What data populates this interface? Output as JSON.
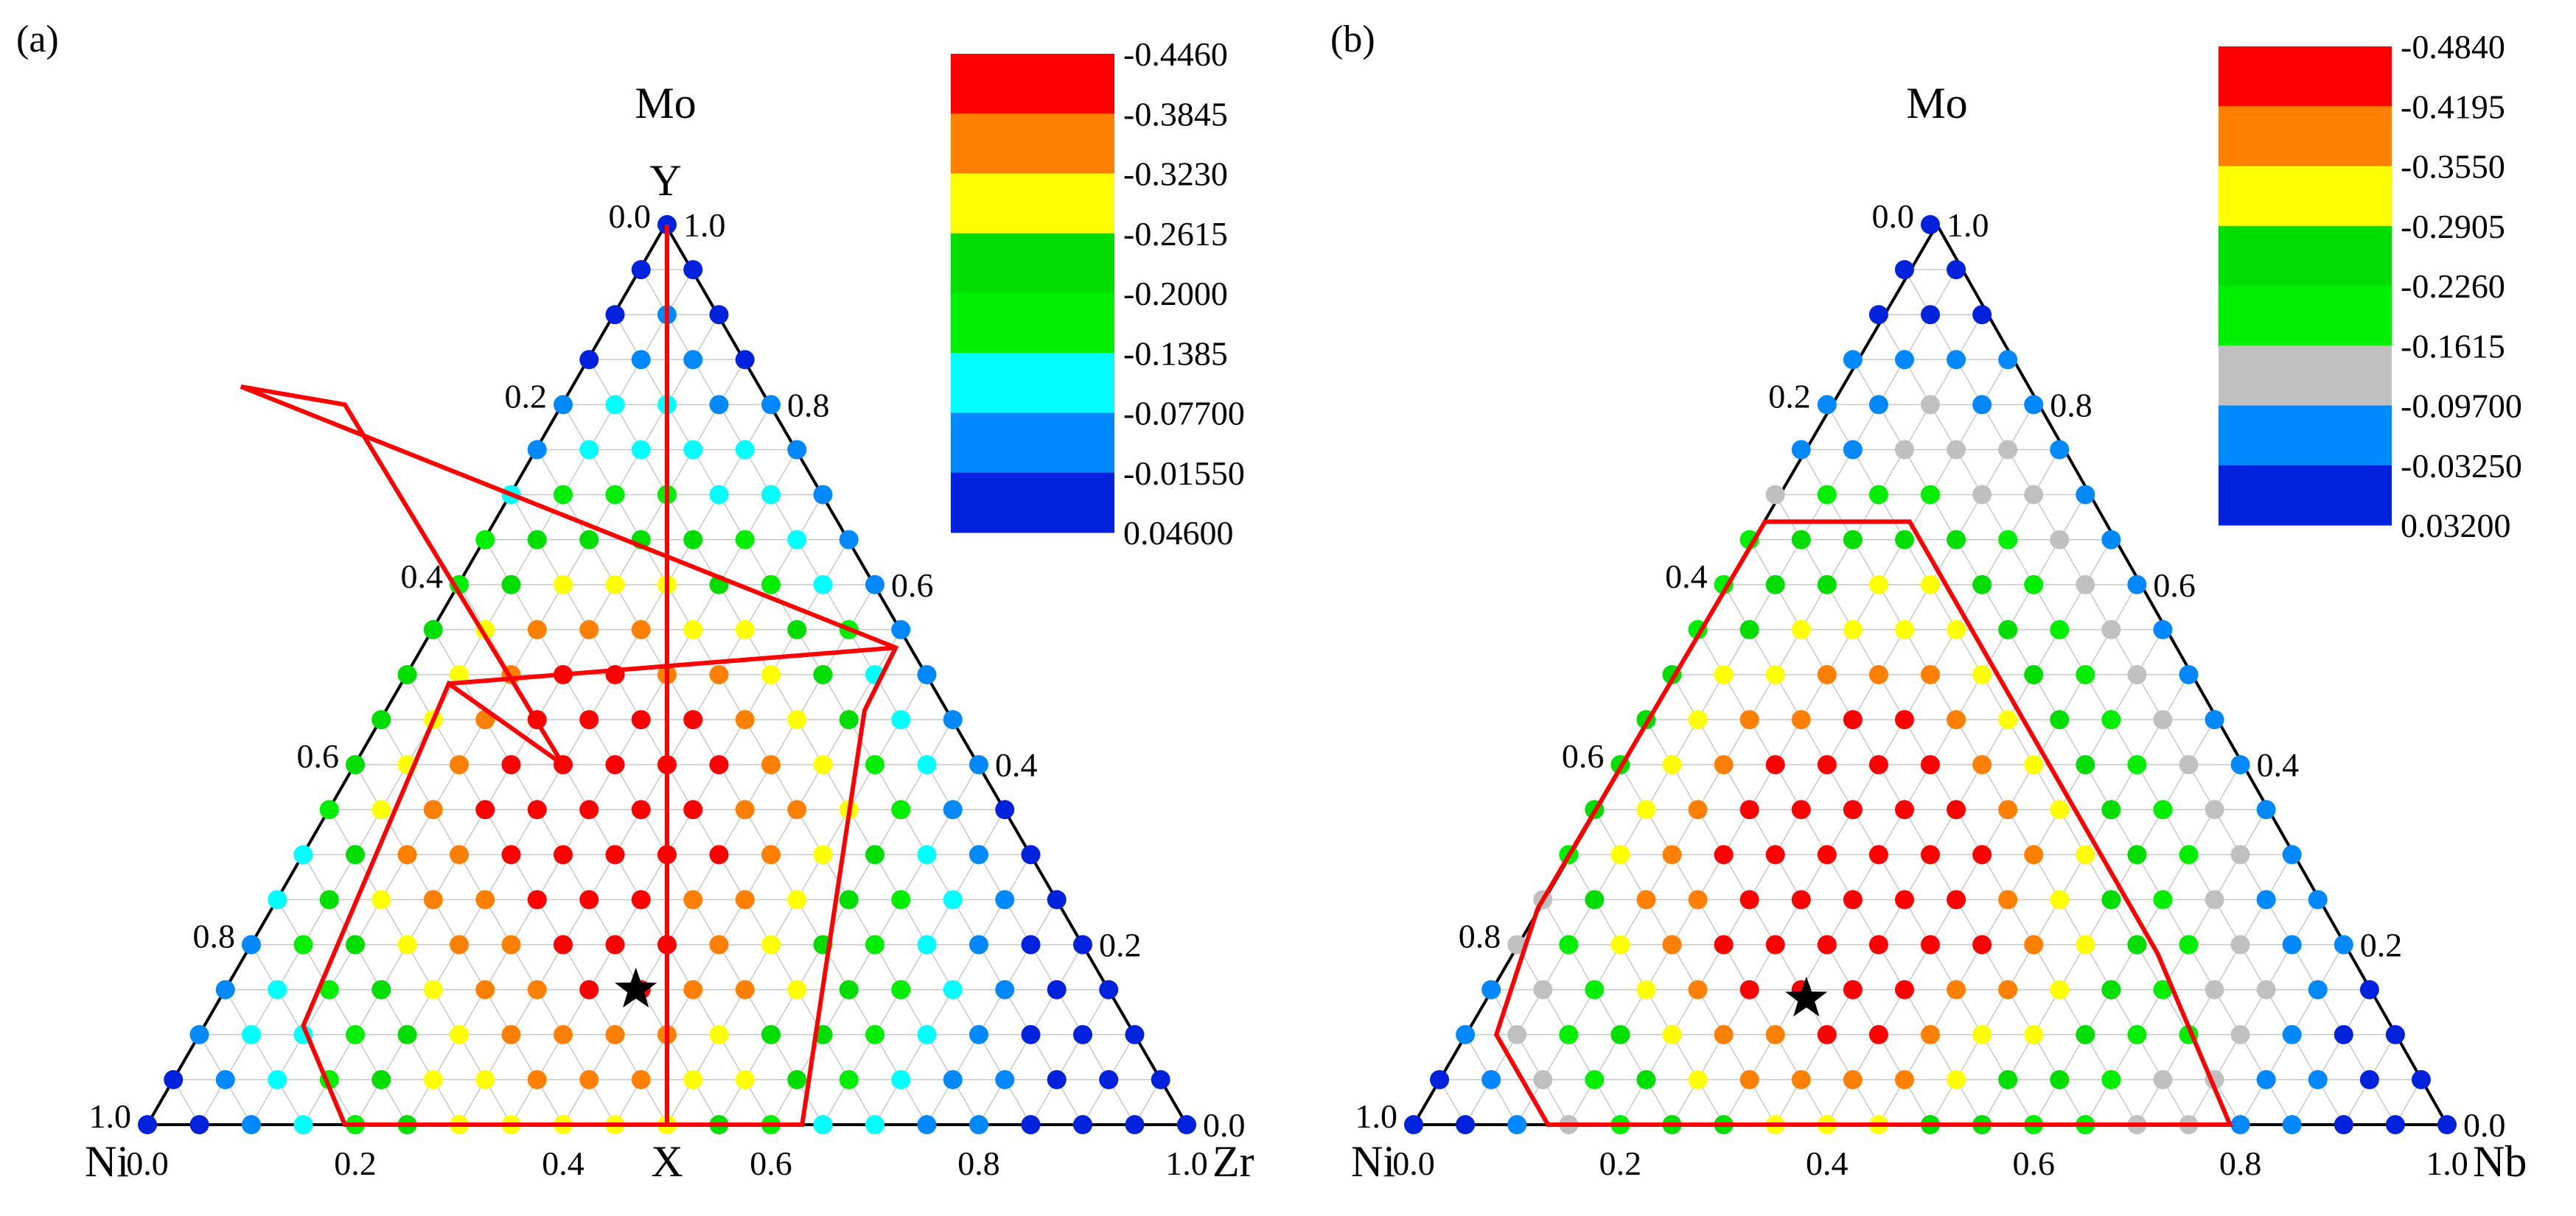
{
  "chart_data": [
    {
      "type": "ternary-scatter",
      "panel_label": "(a)",
      "vertices": {
        "top": "Mo",
        "left": "Ni",
        "right": "Zr"
      },
      "axis_labels": {
        "vertical": "Y",
        "horizontal": "X"
      },
      "left_edge_ticks": [
        "0.0",
        "0.2",
        "0.4",
        "0.6",
        "0.8",
        "1.0"
      ],
      "right_edge_ticks": [
        "1.0",
        "0.8",
        "0.6",
        "0.4",
        "0.2",
        "0.0"
      ],
      "bottom_ticks": [
        "0.0",
        "0.2",
        "0.4",
        "0.6",
        "0.8",
        "1.0"
      ],
      "grid_steps": 20,
      "colorbar": {
        "labels": [
          "-0.4460",
          "-0.3845",
          "-0.3230",
          "-0.2615",
          "-0.2000",
          "-0.1385",
          "-0.07700",
          "-0.01550",
          "0.04600"
        ],
        "colors": [
          "#ff0000",
          "#ff8000",
          "#ffff00",
          "#00dd00",
          "#00ee00",
          "#00ffff",
          "#0088ff",
          "#0022dd"
        ]
      },
      "point_levels": [
        "7",
        "7 7",
        "7 6 7",
        "7 6 6 7",
        "6 5 5 6 6",
        "6 5 5 5 5 6",
        "5 4 4 4 5 5 6",
        "4 3 3 3 3 4 5 6",
        "4 3 2 2 2 3 4 5 6",
        "3 2 1 1 1 2 2 3 4 6",
        "3 2 1 0 0 1 1 2 3 5 6",
        "3 2 1 0 0 0 0 1 2 3 5 6",
        "3 2 1 0 0 0 0 0 1 2 4 5 6",
        "4 2 1 0 0 0 0 0 1 1 2 4 6 7",
        "5 3 1 1 0 0 0 0 0 1 2 3 5 6 7",
        "5 3 2 1 1 0 0 0 1 1 2 3 4 5 6 7",
        "6 4 3 2 1 1 0 0 0 1 2 3 4 5 6 7 7",
        "6 5 4 3 2 1 1 0 0 1 1 2 3 4 5 6 7 7",
        "6 5 5 4 3 2 1 1 1 1 2 3 3 4 5 6 7 7 7",
        "7 6 5 4 3 2 2 1 1 1 2 2 3 4 5 6 6 7 7 7",
        "7 7 6 5 4 3 2 2 2 2 2 3 4 5 5 6 6 7 7 7 7"
      ],
      "star": {
        "x": 0.47,
        "y": 0.15
      },
      "region_polygon": [
        [
          0.4,
          0.4
        ],
        [
          0.19,
          0.8
        ],
        [
          0.09,
          0.82
        ],
        [
          0.72,
          0.53
        ],
        [
          0.69,
          0.46
        ],
        [
          0.63,
          0.0
        ],
        [
          0.19,
          0.0
        ],
        [
          0.15,
          0.11
        ],
        [
          0.29,
          0.49
        ]
      ],
      "divider_lines": [
        [
          [
            0.5,
            1.0
          ],
          [
            0.5,
            0.0
          ]
        ],
        [
          [
            0.29,
            0.49
          ],
          [
            0.72,
            0.53
          ]
        ]
      ]
    },
    {
      "type": "ternary-scatter",
      "panel_label": "(b)",
      "vertices": {
        "top": "Mo",
        "left": "Ni",
        "right": "Nb"
      },
      "left_edge_ticks": [
        "0.0",
        "0.2",
        "0.4",
        "0.6",
        "0.8",
        "1.0"
      ],
      "right_edge_ticks": [
        "1.0",
        "0.8",
        "0.6",
        "0.4",
        "0.2",
        "0.0"
      ],
      "bottom_ticks": [
        "0.0",
        "0.2",
        "0.4",
        "0.6",
        "0.8",
        "1.0"
      ],
      "grid_steps": 20,
      "colorbar": {
        "labels": [
          "-0.4840",
          "-0.4195",
          "-0.3550",
          "-0.2905",
          "-0.2260",
          "-0.1615",
          "-0.09700",
          "-0.03250",
          "0.03200"
        ],
        "colors": [
          "#ff0000",
          "#ff8000",
          "#ffff00",
          "#00dd00",
          "#00ee00",
          "#c0c0c0",
          "#0088ff",
          "#0022dd"
        ]
      },
      "point_levels": [
        "7",
        "7 7",
        "7 7 7",
        "6 6 6 6",
        "6 6 5 6 6",
        "6 6 5 5 5 6",
        "5 4 4 4 5 5 6",
        "4 3 3 3 3 4 5 6",
        "4 3 3 2 2 3 4 5 6",
        "4 3 2 2 2 2 3 4 5 6",
        "3 2 2 1 1 1 2 3 4 5 6",
        "3 2 1 1 0 0 1 2 3 4 5 6",
        "3 2 1 0 0 0 0 1 2 3 4 5 6",
        "3 2 1 0 0 0 0 0 1 2 3 4 5 6",
        "4 2 1 0 0 0 0 0 0 1 2 3 4 5 6",
        "5 3 1 1 0 0 0 0 0 1 2 3 4 5 6 6",
        "5 4 2 1 0 0 0 0 0 0 1 2 3 4 5 6 6",
        "6 5 4 2 1 0 0 0 0 1 1 2 3 4 5 5 6 7",
        "6 5 4 3 2 1 1 0 0 1 2 2 3 4 4 5 6 7 7",
        "7 6 5 4 3 2 1 1 1 1 2 3 3 4 5 5 6 6 7 7",
        "7 7 6 5 4 3 3 2 2 2 3 3 4 4 5 5 6 6 7 7 7"
      ],
      "star": {
        "x": 0.38,
        "y": 0.14
      },
      "region_polygon": [
        [
          0.34,
          0.67
        ],
        [
          0.48,
          0.67
        ],
        [
          0.72,
          0.19
        ],
        [
          0.79,
          0.0
        ],
        [
          0.13,
          0.0
        ],
        [
          0.08,
          0.1
        ],
        [
          0.12,
          0.24
        ]
      ],
      "divider_lines": []
    }
  ]
}
